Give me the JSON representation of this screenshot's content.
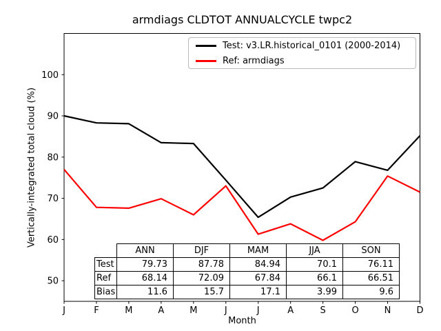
{
  "chart_data": {
    "type": "line",
    "title": "armdiags CLDTOT ANNUALCYCLE twpc2",
    "xlabel": "Month",
    "ylabel": "Vertically-integrated total cloud (%)",
    "x_tick_labels": [
      "J",
      "F",
      "M",
      "A",
      "M",
      "J",
      "J",
      "A",
      "S",
      "O",
      "N",
      "D"
    ],
    "y_ticks": [
      50,
      60,
      70,
      80,
      90,
      100
    ],
    "ylim": [
      45,
      110
    ],
    "grid": false,
    "legend_position": "upper right inside",
    "series": [
      {
        "name": "Test: v3.LR.historical_0101 (2000-2014)",
        "color": "#000000",
        "values": [
          90.0,
          88.3,
          88.1,
          83.5,
          83.3,
          74.4,
          65.4,
          70.3,
          72.5,
          78.9,
          76.8,
          85.2
        ]
      },
      {
        "name": "Ref: armdiags",
        "color": "#ff0000",
        "values": [
          77.0,
          67.8,
          67.6,
          69.9,
          66.0,
          73.0,
          61.3,
          63.8,
          59.8,
          64.3,
          75.4,
          71.5
        ]
      }
    ]
  },
  "stats_table": {
    "columns": [
      "ANN",
      "DJF",
      "MAM",
      "JJA",
      "SON"
    ],
    "rows": [
      {
        "label": "Test",
        "values": [
          "79.73",
          "87.78",
          "84.94",
          "70.1",
          "76.11"
        ]
      },
      {
        "label": "Ref",
        "values": [
          "68.14",
          "72.09",
          "67.84",
          "66.1",
          "66.51"
        ]
      },
      {
        "label": "Bias",
        "values": [
          "11.6",
          "15.7",
          "17.1",
          "3.99",
          "9.6"
        ]
      }
    ]
  }
}
